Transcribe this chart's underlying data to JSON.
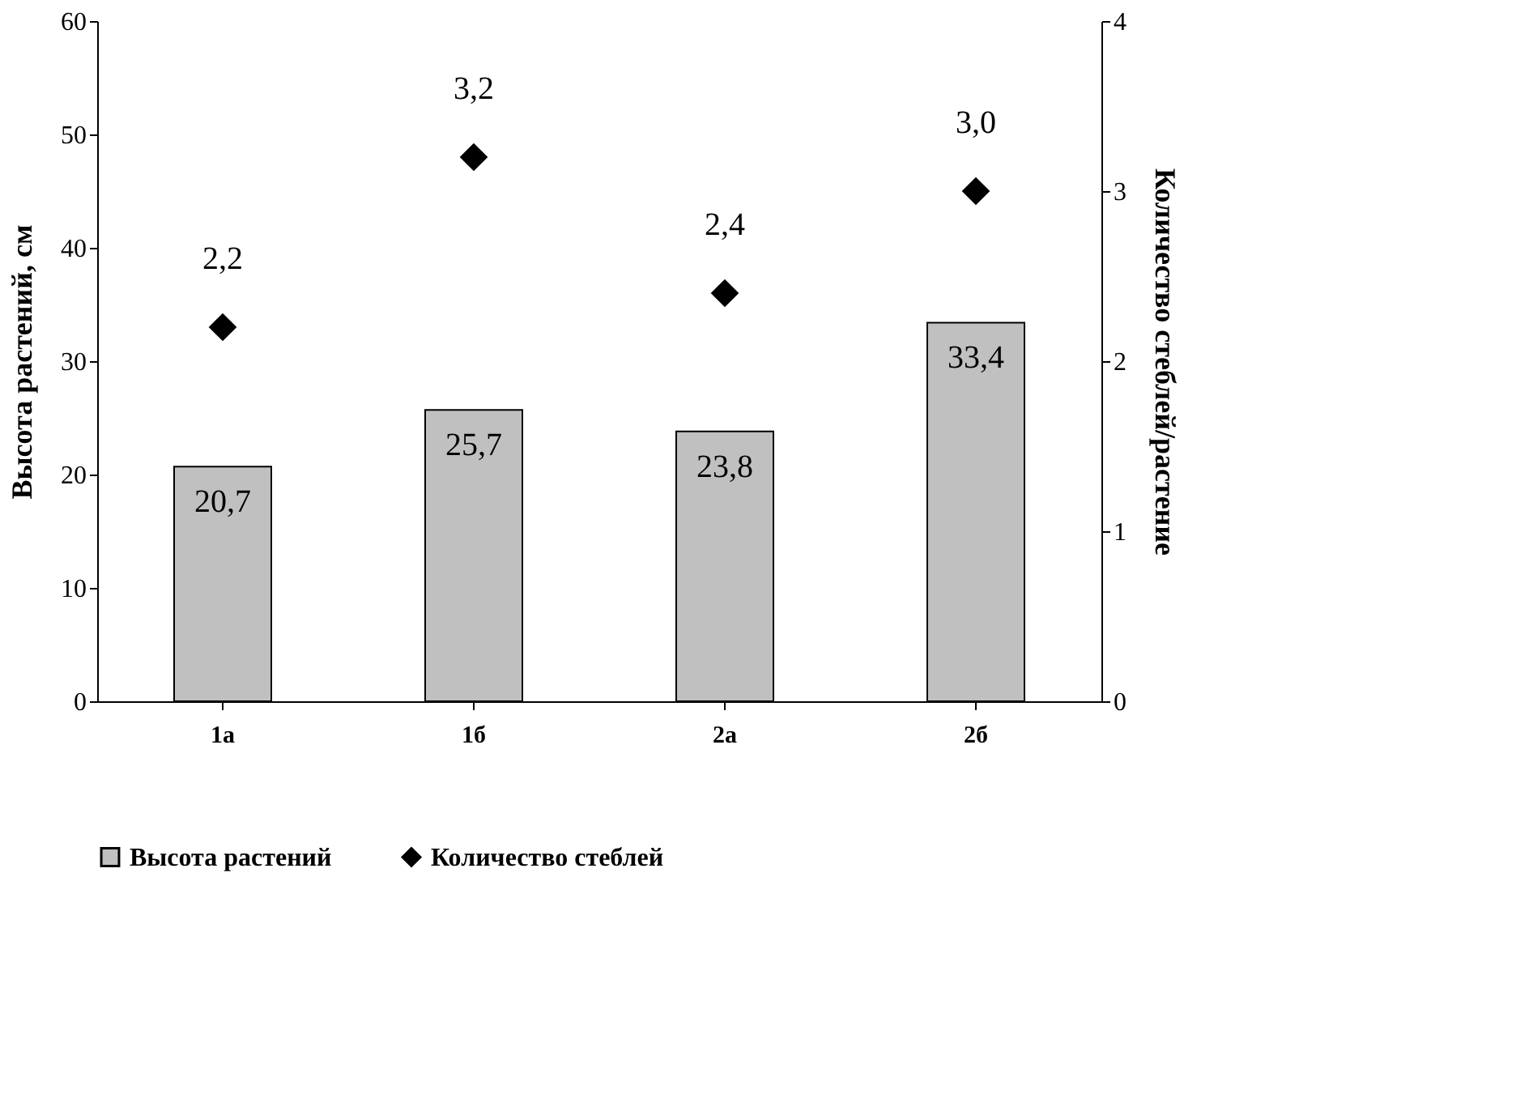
{
  "chart_data": {
    "type": "bar",
    "categories": [
      "1а",
      "1б",
      "2а",
      "2б"
    ],
    "ylabel": "Высота растений, см",
    "y2label": "Количество стеблей/растение",
    "ylim": [
      0,
      60
    ],
    "yticks": [
      0,
      10,
      20,
      30,
      40,
      50,
      60
    ],
    "y2lim": [
      0,
      4
    ],
    "y2ticks": [
      0,
      1,
      2,
      3,
      4
    ],
    "series": [
      {
        "name": "Высота растений",
        "color": "#c0c0c0",
        "values": [
          20.7,
          25.7,
          23.8,
          33.4
        ],
        "value_labels": [
          "20,7",
          "25,7",
          "23,8",
          "33,4"
        ]
      },
      {
        "name": "Количество стеблей",
        "type": "scatter",
        "axis": "y2",
        "marker": "diamond",
        "color": "#000000",
        "values": [
          2.2,
          3.2,
          2.4,
          3.0
        ],
        "value_labels": [
          "2,2",
          "3,2",
          "2,4",
          "3,0"
        ]
      }
    ],
    "grid": false,
    "legend": "bottom"
  }
}
